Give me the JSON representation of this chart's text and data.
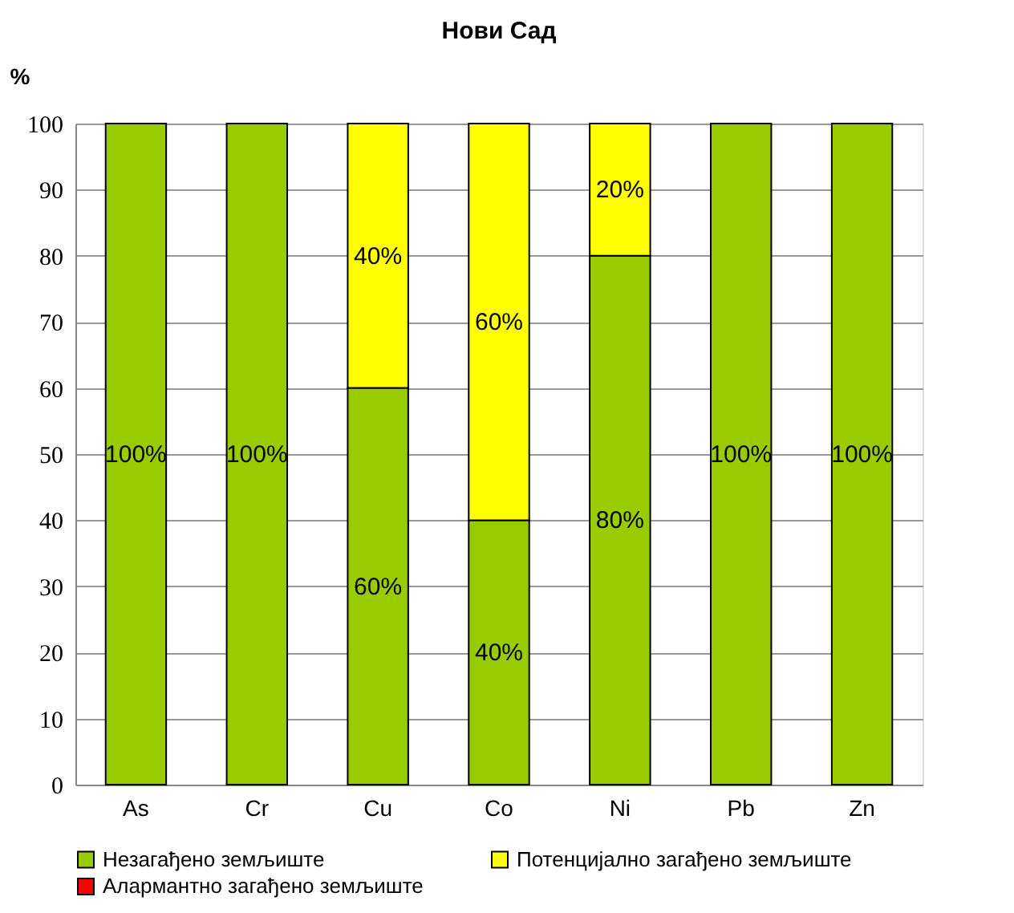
{
  "chart_data": {
    "type": "bar",
    "title": "Нови Сад",
    "ylabel": "%",
    "stacked": true,
    "categories": [
      "As",
      "Cr",
      "Cu",
      "Co",
      "Ni",
      "Pb",
      "Zn"
    ],
    "series": [
      {
        "name": "Незагађено земљиште",
        "color": "#99cc00",
        "values": [
          100,
          100,
          60,
          40,
          80,
          100,
          100
        ],
        "value_labels": [
          "100%",
          "100%",
          "60%",
          "40%",
          "80%",
          "100%",
          "100%"
        ]
      },
      {
        "name": "Потенцијално загађено земљиште",
        "color": "#ffff00",
        "values": [
          null,
          null,
          40,
          60,
          20,
          null,
          null
        ],
        "value_labels": [
          null,
          null,
          "40%",
          "60%",
          "20%",
          null,
          null
        ]
      },
      {
        "name": "Алармантно загађено земљиште",
        "color": "#ff0000",
        "values": [
          null,
          null,
          null,
          null,
          null,
          null,
          null
        ]
      }
    ],
    "ylim": [
      0,
      100
    ],
    "yticks": [
      0,
      10,
      20,
      30,
      40,
      50,
      60,
      70,
      80,
      90,
      100
    ],
    "grid": "y",
    "legend": "bottom"
  }
}
